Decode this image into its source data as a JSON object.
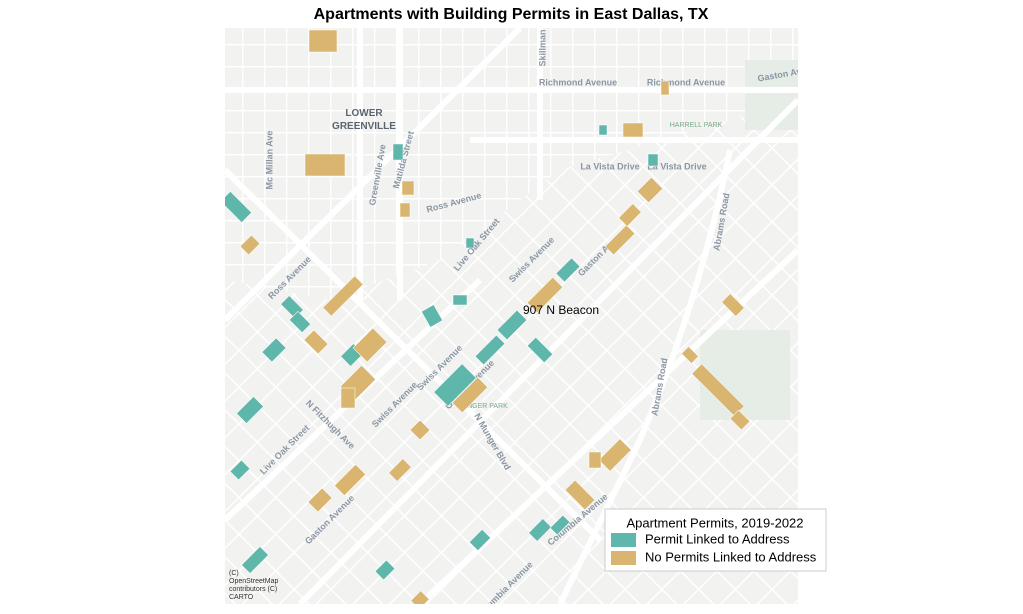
{
  "title": "Apartments with Building Permits in East Dallas, TX",
  "annotation": "907 N Beacon",
  "legend": {
    "title": "Apartment Permits, 2019-2022",
    "items": [
      {
        "label": "Permit Linked to Address",
        "color": "#5fb6ab"
      },
      {
        "label": "No Permits Linked to Address",
        "color": "#d9b56f"
      }
    ]
  },
  "map_labels": [
    "Richmond Avenue",
    "Richmond Avenue",
    "Gaston Ave",
    "LOWER",
    "GREENVILLE",
    "HARRELL PARK",
    "La Vista Drive",
    "La Vista Drive",
    "Ross Avenue",
    "Matilda Street",
    "Greenville Ave",
    "Mc Millan Ave",
    "Abrams Road",
    "Live Oak Street",
    "Swiss Avenue",
    "Gaston Avenue",
    "Ross Avenue",
    "Swiss Avenue",
    "Swiss Avenue",
    "Gaston Avenue",
    "MUNGER PARK",
    "N Fitzhugh Ave",
    "Live Oak Street",
    "N Munger Blvd",
    "Abrams Road",
    "Gaston Avenue",
    "Columbia Avenue",
    "Skillman",
    "Columbia Avenue"
  ],
  "attribution": [
    "(C)",
    "OpenStreetMap",
    "contributors (C)",
    "CARTO"
  ]
}
